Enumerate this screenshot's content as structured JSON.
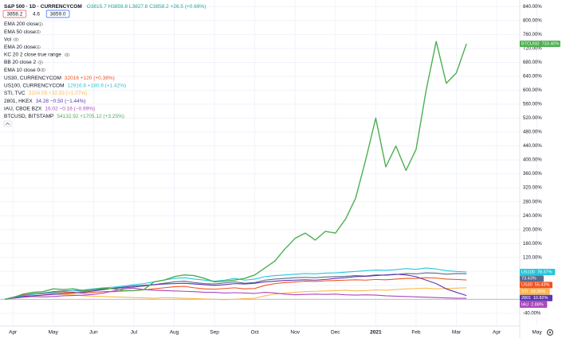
{
  "chart_data": {
    "type": "line",
    "buttons": [
      "3858.2",
      "4.6",
      "3859.0"
    ],
    "indicators": [
      "EMA 200 close",
      "EMA 50 close",
      "Vol",
      "EMA 20 close",
      "KC 20 2 close true range",
      "BB 20 close 2",
      "EMA 10 close 0"
    ],
    "x": [
      -0.2,
      0,
      0.25,
      0.5,
      0.75,
      1,
      1.25,
      1.5,
      1.75,
      2,
      2.25,
      2.5,
      2.75,
      3,
      3.25,
      3.5,
      3.75,
      4,
      4.25,
      4.5,
      4.75,
      5,
      5.25,
      5.5,
      5.75,
      6,
      6.25,
      6.5,
      6.75,
      7,
      7.25,
      7.5,
      7.75,
      8,
      8.25,
      8.5,
      8.75,
      9,
      9.25,
      9.5,
      9.75,
      10,
      10.25,
      10.5,
      10.75,
      11,
      11.25
    ],
    "xlim": [
      -0.32,
      13.62
    ],
    "xticks": [
      {
        "value": 0,
        "label": "Apr"
      },
      {
        "value": 1,
        "label": "May"
      },
      {
        "value": 2,
        "label": "Jun"
      },
      {
        "value": 3,
        "label": "Jul"
      },
      {
        "value": 4,
        "label": "Aug"
      },
      {
        "value": 5,
        "label": "Sep"
      },
      {
        "value": 6,
        "label": "Oct"
      },
      {
        "value": 7,
        "label": "Nov"
      },
      {
        "value": 8,
        "label": "Dec"
      },
      {
        "value": 9,
        "label": "2021"
      },
      {
        "value": 10,
        "label": "Feb"
      },
      {
        "value": 11,
        "label": "Mar"
      },
      {
        "value": 12,
        "label": "Apr"
      },
      {
        "value": 13,
        "label": "May"
      }
    ],
    "ylim": [
      -70,
      850
    ],
    "yticks": [
      {
        "value": -40,
        "label": "-40.00%"
      },
      {
        "value": 0,
        "label": "0.00%"
      },
      {
        "value": 40,
        "label": "40.00%"
      },
      {
        "value": 80,
        "label": "80.00%"
      },
      {
        "value": 120,
        "label": "120.00%"
      },
      {
        "value": 160,
        "label": "160.00%"
      },
      {
        "value": 200,
        "label": "200.00%"
      },
      {
        "value": 240,
        "label": "240.00%"
      },
      {
        "value": 280,
        "label": "280.00%"
      },
      {
        "value": 320,
        "label": "320.00%"
      },
      {
        "value": 360,
        "label": "360.00%"
      },
      {
        "value": 400,
        "label": "400.00%"
      },
      {
        "value": 440,
        "label": "440.00%"
      },
      {
        "value": 480,
        "label": "480.00%"
      },
      {
        "value": 520,
        "label": "520.00%"
      },
      {
        "value": 560,
        "label": "560.00%"
      },
      {
        "value": 600,
        "label": "600.00%"
      },
      {
        "value": 640,
        "label": "640.00%"
      },
      {
        "value": 680,
        "label": "680.00%"
      },
      {
        "value": 720,
        "label": "720.00%"
      },
      {
        "value": 760,
        "label": "760.00%"
      },
      {
        "value": 800,
        "label": "800.00%"
      },
      {
        "value": 840,
        "label": "840.00%"
      }
    ],
    "grid": true,
    "series": [
      {
        "name": "S&P 500 · 1D · CURRENCYCOM",
        "quote": "O3815.7 H3859.8 L3827.8 C3858.2 +26.5 (+0.69%)",
        "color": "#5b6b8c",
        "values": [
          0,
          6,
          12,
          16,
          18,
          22,
          24,
          25,
          23,
          27,
          30,
          31,
          33,
          35,
          38,
          42,
          46,
          50,
          52,
          48,
          45,
          44,
          47,
          50,
          46,
          48,
          55,
          58,
          60,
          62,
          63,
          62,
          64,
          65,
          66,
          68,
          67,
          70,
          69,
          71,
          74,
          73,
          76,
          75,
          72,
          74,
          73.43
        ],
        "end_tag": {
          "value": 73.43,
          "label": "73.43%"
        }
      },
      {
        "name": "US30, CURRENCYCOM",
        "quote": "32016 +120 (+0.38%)",
        "color": "#f4511e",
        "tag_name": "US30",
        "values": [
          0,
          5,
          12,
          15,
          16,
          18,
          20,
          20,
          17,
          20,
          22,
          22,
          24,
          25,
          27,
          30,
          33,
          36,
          37,
          33,
          30,
          29,
          31,
          33,
          30,
          31,
          40,
          45,
          48,
          50,
          52,
          51,
          53,
          54,
          55,
          56,
          55,
          57,
          56,
          58,
          60,
          60,
          62,
          61,
          58,
          57,
          55.43
        ],
        "end_tag": {
          "value": 55.43,
          "label": "55.43%"
        }
      },
      {
        "name": "US100, CURRENCYCOM",
        "quote": "12916.8 +180.9 (+1.42%)",
        "color": "#26c6da",
        "tag_name": "US100",
        "values": [
          0,
          5,
          10,
          14,
          17,
          20,
          22,
          25,
          27,
          30,
          33,
          35,
          38,
          42,
          45,
          50,
          55,
          60,
          62,
          58,
          55,
          52,
          55,
          60,
          55,
          58,
          65,
          68,
          70,
          72,
          74,
          73,
          75,
          76,
          78,
          80,
          82,
          84,
          83,
          85,
          88,
          86,
          90,
          87,
          82,
          80,
          78.37
        ],
        "end_tag": {
          "value": 78.37,
          "label": "78.37%"
        }
      },
      {
        "name": "STI, TVC",
        "quote": "3104.09 +32.93 (+1.07%)",
        "color": "#ffb74d",
        "tag_name": "STI",
        "values": [
          0,
          3,
          8,
          10,
          12,
          15,
          14,
          13,
          10,
          9,
          8,
          7,
          6,
          5,
          4,
          3,
          5,
          4,
          3,
          2,
          1,
          0,
          -1,
          0,
          2,
          3,
          10,
          15,
          18,
          20,
          22,
          23,
          24,
          25,
          26,
          24,
          25,
          27,
          26,
          28,
          30,
          31,
          32,
          30,
          31,
          32,
          33.26
        ],
        "end_tag": {
          "value": 33.26,
          "label": "33.26%"
        }
      },
      {
        "name": "2801, HKEX",
        "quote": "34.28 −0.50 (−1.44%)",
        "color": "#5e35b1",
        "tag_name": "2801",
        "values": [
          0,
          4,
          8,
          10,
          12,
          14,
          16,
          18,
          20,
          24,
          28,
          32,
          35,
          38,
          40,
          42,
          44,
          45,
          46,
          44,
          42,
          40,
          42,
          45,
          44,
          46,
          50,
          52,
          54,
          55,
          56,
          55,
          57,
          60,
          62,
          65,
          66,
          68,
          70,
          72,
          70,
          65,
          55,
          45,
          30,
          20,
          10.82
        ],
        "end_tag": {
          "value": 10.82,
          "label": "10.82%"
        }
      },
      {
        "name": "IAU, CBOE BZX",
        "quote": "16.02 −0.16 (−0.99%)",
        "color": "#ab47bc",
        "tag_name": "IAU",
        "values": [
          0,
          3,
          6,
          8,
          7,
          8,
          10,
          11,
          12,
          14,
          18,
          24,
          30,
          32,
          28,
          26,
          25,
          24,
          23,
          22,
          20,
          20,
          18,
          19,
          18,
          17,
          20,
          18,
          15,
          13,
          14,
          15,
          14,
          15,
          13,
          12,
          13,
          12,
          10,
          9,
          8,
          7,
          6,
          5,
          4,
          3,
          2.88
        ],
        "end_tag": {
          "value": 2.88,
          "label": "2.88%"
        }
      },
      {
        "name": "BTCUSD, BITSTAMP",
        "quote": "54132.92 +1705.12 (+3.25%)",
        "color": "#4caf50",
        "tag_name": "BTCUSD",
        "values": [
          0,
          5,
          15,
          20,
          22,
          30,
          28,
          30,
          25,
          28,
          32,
          30,
          25,
          25,
          28,
          50,
          55,
          65,
          70,
          68,
          60,
          50,
          52,
          55,
          60,
          70,
          90,
          110,
          145,
          175,
          190,
          170,
          195,
          190,
          230,
          290,
          400,
          520,
          380,
          440,
          370,
          430,
          600,
          740,
          620,
          650,
          733.4
        ],
        "end_tag": {
          "value": 733.4,
          "label": "733.40%"
        }
      }
    ]
  }
}
